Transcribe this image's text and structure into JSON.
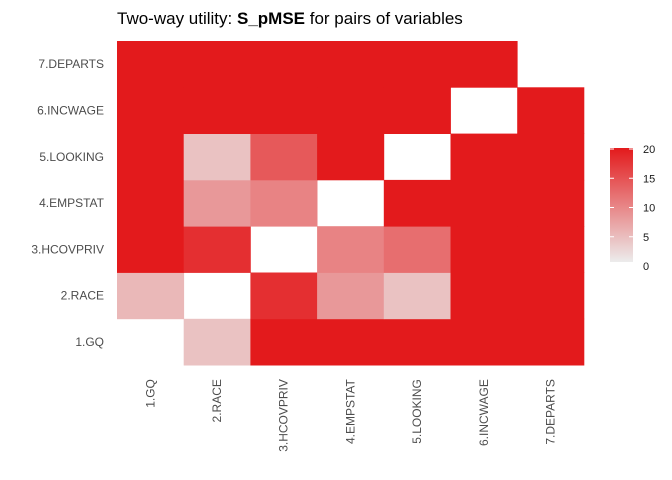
{
  "chart_data": {
    "type": "heatmap",
    "title_prefix": "Two-way utility: ",
    "title_bold": "S_pMSE",
    "title_suffix": " for pairs of variables",
    "x_categories": [
      "1.GQ",
      "2.RACE",
      "3.HCOVPRIV",
      "4.EMPSTAT",
      "5.LOOKING",
      "6.INCWAGE",
      "7.DEPARTS"
    ],
    "y_categories": [
      "1.GQ",
      "2.RACE",
      "3.HCOVPRIV",
      "4.EMPSTAT",
      "5.LOOKING",
      "6.INCWAGE",
      "7.DEPARTS"
    ],
    "values": [
      [
        null,
        4,
        20,
        20,
        20,
        20,
        20
      ],
      [
        5,
        null,
        18,
        8,
        4,
        20,
        20
      ],
      [
        20,
        18,
        null,
        10,
        12,
        20,
        20
      ],
      [
        20,
        8,
        10,
        null,
        20,
        20,
        20
      ],
      [
        20,
        4,
        14,
        20,
        null,
        20,
        20
      ],
      [
        20,
        20,
        20,
        20,
        20,
        null,
        20
      ],
      [
        20,
        20,
        20,
        20,
        20,
        20,
        null
      ]
    ],
    "color_scale": {
      "min": 0,
      "max": 20,
      "low_color": "#ececec",
      "high_color": "#e31a1c"
    },
    "legend": {
      "ticks": [
        0,
        5,
        10,
        15,
        20
      ],
      "placement": "right"
    },
    "grid": false
  }
}
